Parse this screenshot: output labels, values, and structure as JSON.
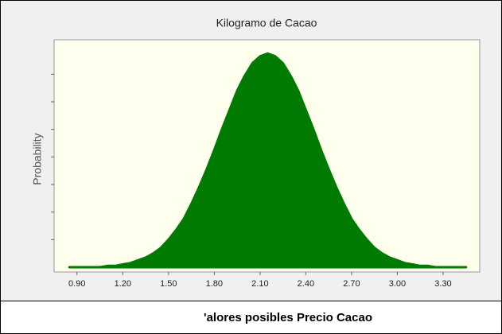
{
  "chart_data": {
    "type": "area",
    "title": "Kilogramo de Cacao",
    "y_label": "Probability",
    "x_label": "'alores posibles Precio Cacao",
    "color": "#007a00",
    "x": [
      0.85,
      0.9,
      0.95,
      1.0,
      1.05,
      1.1,
      1.15,
      1.2,
      1.25,
      1.3,
      1.35,
      1.4,
      1.45,
      1.5,
      1.55,
      1.6,
      1.65,
      1.7,
      1.75,
      1.8,
      1.85,
      1.9,
      1.95,
      2.0,
      2.05,
      2.1,
      2.15,
      2.2,
      2.25,
      2.3,
      2.35,
      2.4,
      2.45,
      2.5,
      2.55,
      2.6,
      2.65,
      2.7,
      2.75,
      2.8,
      2.85,
      2.9,
      2.95,
      3.0,
      3.05,
      3.1,
      3.15,
      3.2,
      3.25,
      3.3,
      3.35,
      3.4,
      3.45
    ],
    "values": [
      0,
      0,
      0,
      0,
      0,
      0.01,
      0.01,
      0.02,
      0.03,
      0.05,
      0.07,
      0.1,
      0.14,
      0.2,
      0.27,
      0.35,
      0.46,
      0.58,
      0.71,
      0.85,
      1.0,
      1.14,
      1.28,
      1.39,
      1.48,
      1.53,
      1.55,
      1.53,
      1.48,
      1.39,
      1.28,
      1.14,
      1.0,
      0.85,
      0.71,
      0.58,
      0.46,
      0.35,
      0.27,
      0.2,
      0.14,
      0.1,
      0.07,
      0.05,
      0.03,
      0.02,
      0.01,
      0.01,
      0,
      0,
      0,
      0,
      0
    ],
    "xlim": [
      0.75,
      3.54
    ],
    "ylim": [
      0,
      1.65
    ],
    "xticks": [
      {
        "value": 0.9,
        "label": "0.90"
      },
      {
        "value": 1.2,
        "label": "1.20"
      },
      {
        "value": 1.5,
        "label": "1.50"
      },
      {
        "value": 1.8,
        "label": "1.80"
      },
      {
        "value": 2.1,
        "label": "2.10"
      },
      {
        "value": 2.4,
        "label": "2.40"
      },
      {
        "value": 2.7,
        "label": "2.70"
      },
      {
        "value": 3.0,
        "label": "3.00"
      },
      {
        "value": 3.3,
        "label": "3.30"
      }
    ],
    "yticks": [
      0.2,
      0.4,
      0.6,
      0.8,
      1.0,
      1.2,
      1.4
    ],
    "ytick_labels": false,
    "grid": false
  }
}
